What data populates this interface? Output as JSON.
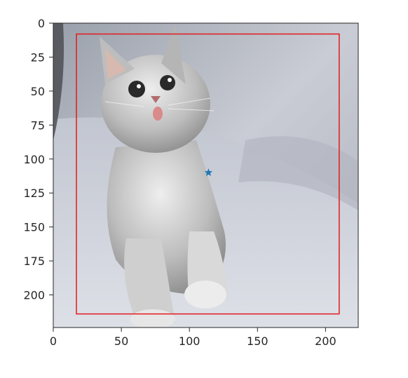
{
  "chart_data": {
    "type": "scatter",
    "title": "",
    "xlabel": "",
    "ylabel": "",
    "image_description": "",
    "xlim": [
      0,
      224
    ],
    "ylim": [
      224,
      0
    ],
    "x_ticks": [
      0,
      50,
      100,
      150,
      200
    ],
    "y_ticks": [
      0,
      25,
      50,
      75,
      100,
      125,
      150,
      175,
      200
    ],
    "rectangle": {
      "x0": 17,
      "y0": 8,
      "x1": 210,
      "y1": 214,
      "color": "#e31a1c"
    },
    "points": [
      {
        "x": 114,
        "y": 110,
        "marker": "star",
        "color": "#1f77b4"
      }
    ]
  },
  "colors": {
    "axis": "#262626",
    "background": "#ffffff"
  }
}
